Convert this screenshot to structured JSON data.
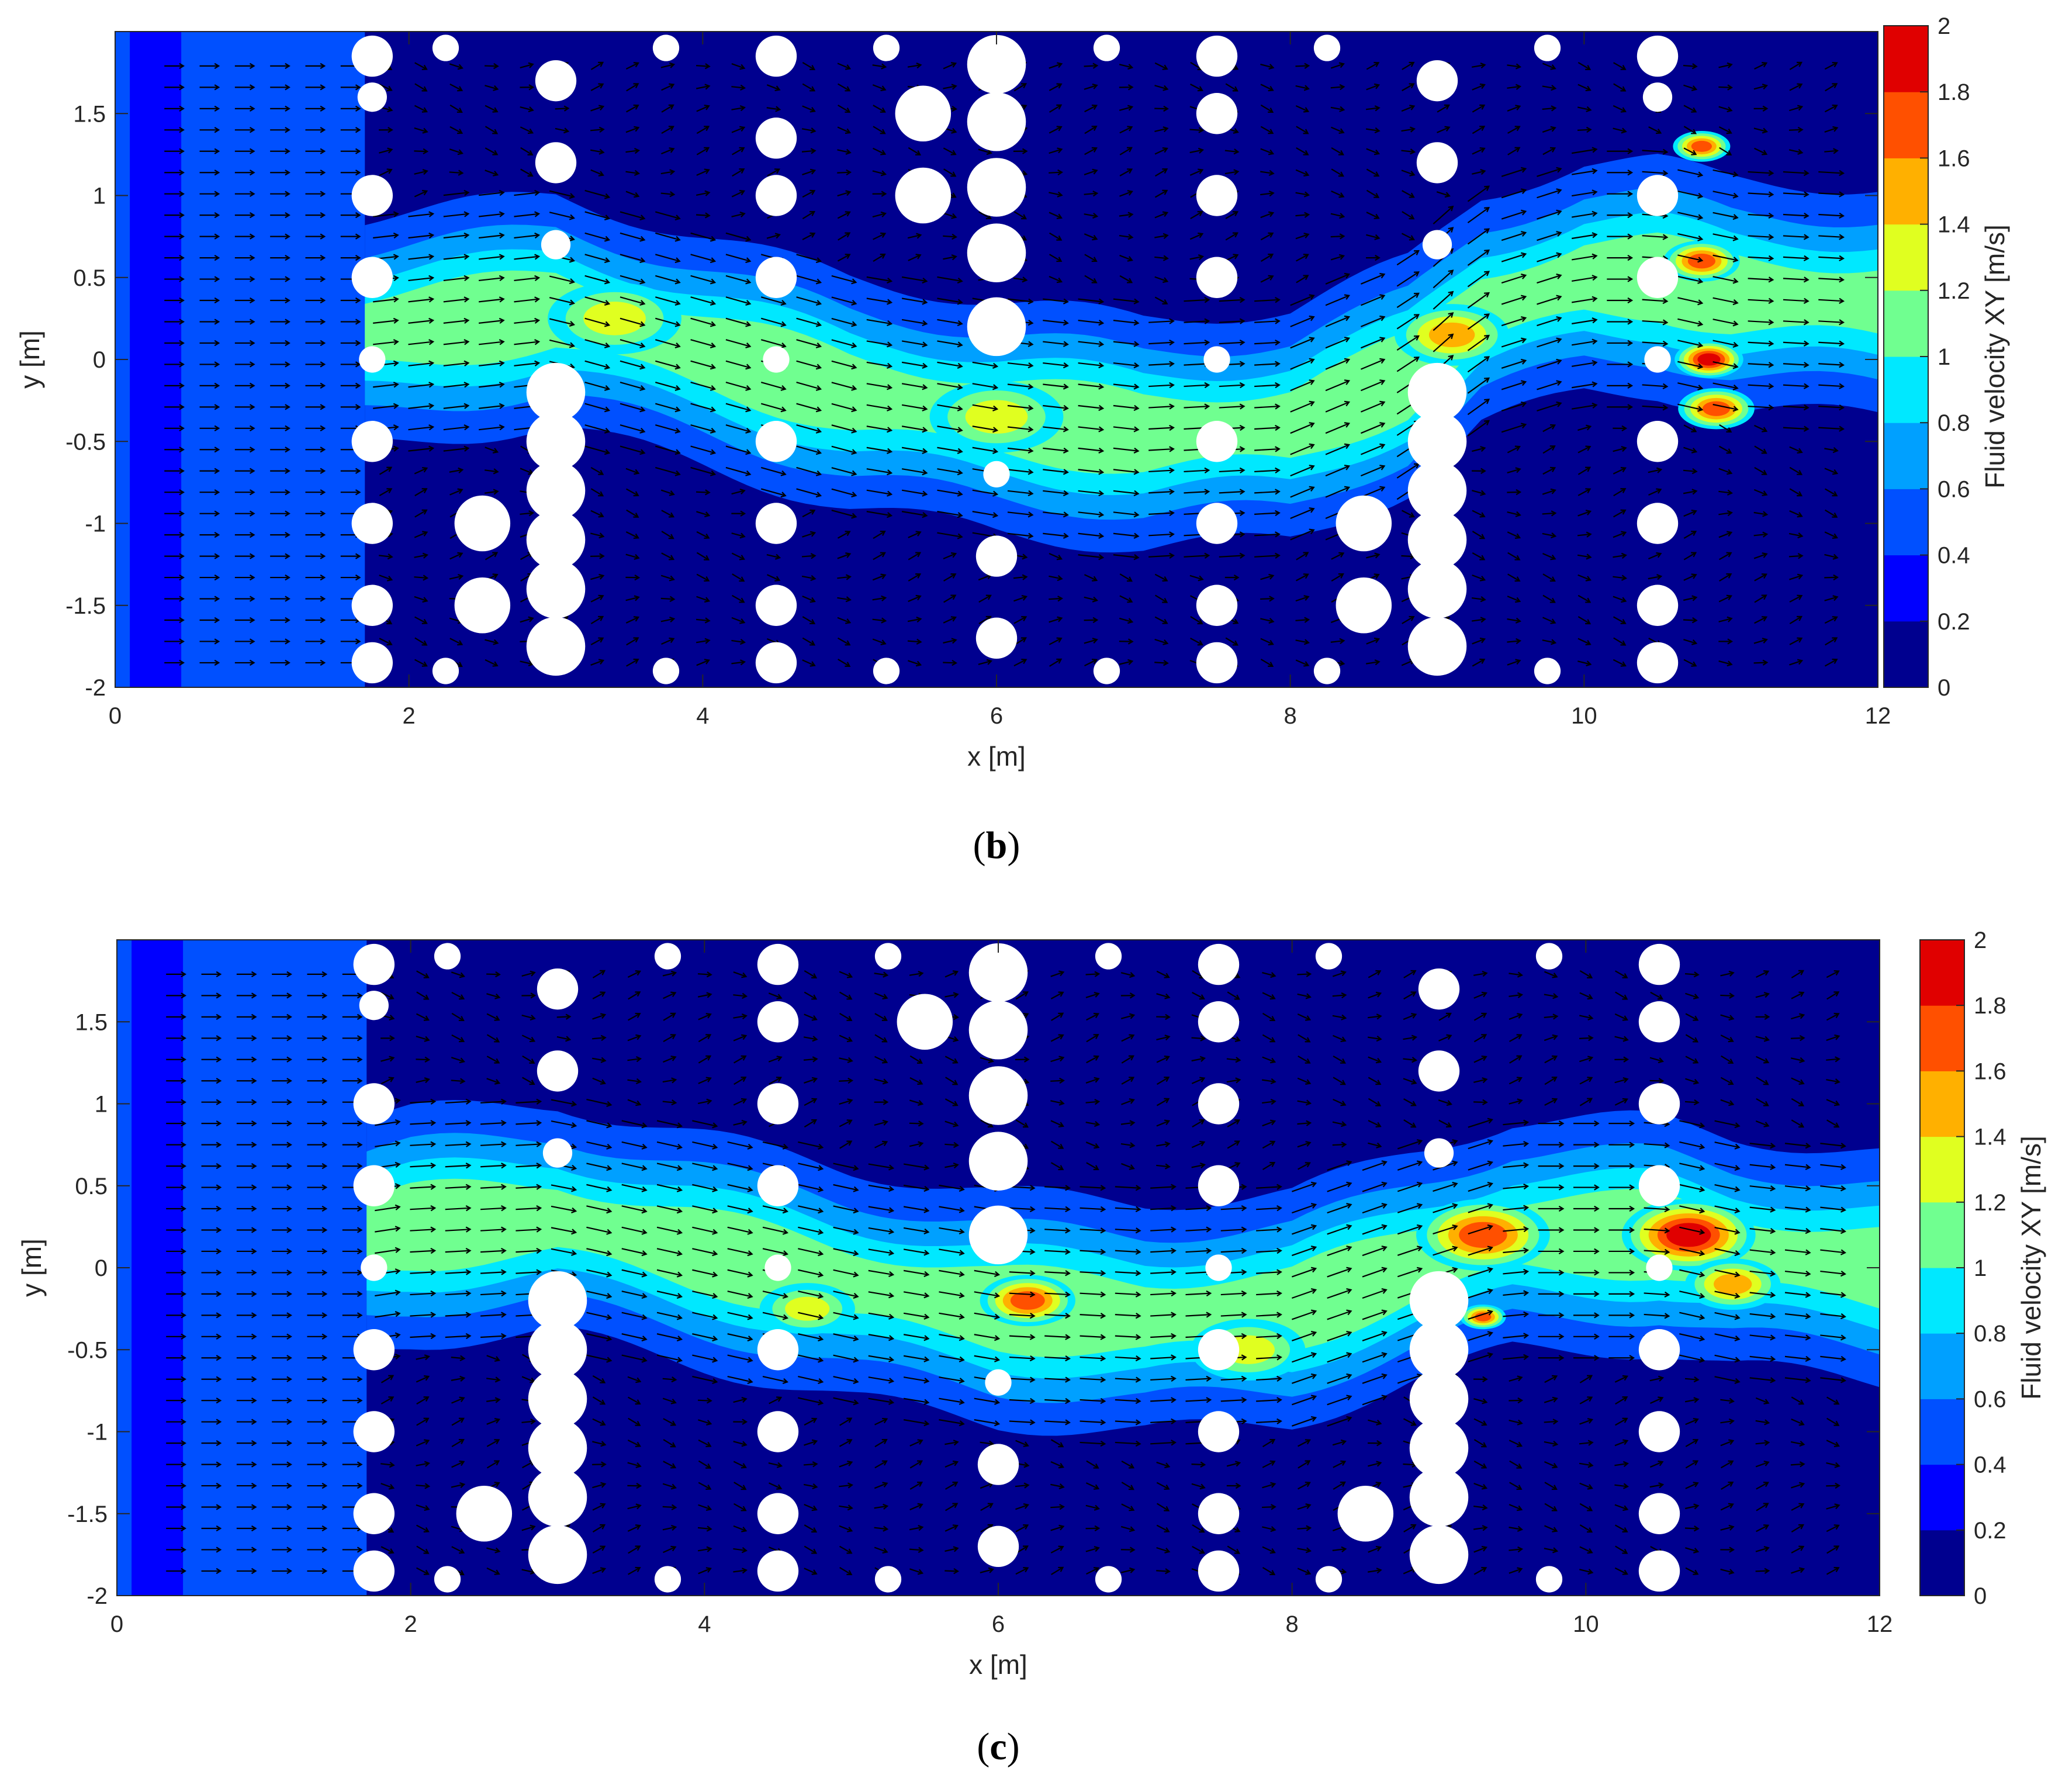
{
  "colors": {
    "plot_background": "#00008f",
    "obstacle": "#ffffff",
    "vector": "#000000",
    "scale_bands": [
      "#00008f",
      "#0000ff",
      "#0050ff",
      "#00a0ff",
      "#00e8ff",
      "#70ff90",
      "#e0ff20",
      "#ffb000",
      "#ff5000",
      "#e00000"
    ]
  },
  "chart_data": [
    {
      "type": "heatmap",
      "panel": "(b)",
      "caption_letter": "b",
      "xlabel": "x [m]",
      "ylabel": "y [m]",
      "xlim": [
        0,
        12
      ],
      "ylim": [
        -2,
        2
      ],
      "xticks": [
        "0",
        "2",
        "4",
        "6",
        "8",
        "10",
        "12"
      ],
      "yticks": [
        "-2",
        "-1.5",
        "-1",
        "-0.5",
        "0",
        "0.5",
        "1",
        "1.5"
      ],
      "colorbar_label": "Fluid velocity XY [m/s]",
      "colorbar_ticks": [
        "0",
        "0.2",
        "0.4",
        "0.6",
        "0.8",
        "1",
        "1.2",
        "1.4",
        "1.6",
        "1.8",
        "2"
      ],
      "clim": [
        0,
        2
      ],
      "inflow_band_velocity": 0.5,
      "obstacle_rows": [
        {
          "x": 1.75,
          "y": [
            1.85,
            1.6,
            1.0,
            0.5,
            0.0,
            -0.5,
            -1.0,
            -1.5,
            -1.85
          ],
          "r": [
            0.14,
            0.1,
            0.14,
            0.14,
            0.09,
            0.14,
            0.14,
            0.14,
            0.14
          ]
        },
        {
          "x": 2.25,
          "y": [
            1.9,
            -1.9
          ],
          "r": [
            0.09,
            0.09
          ]
        },
        {
          "x": 2.5,
          "y": [
            -1.0,
            -1.5
          ],
          "r": [
            0.19,
            0.19
          ]
        },
        {
          "x": 3.0,
          "y": [
            1.7,
            1.2,
            0.7,
            -0.2,
            -0.5,
            -0.8,
            -1.1,
            -1.4,
            -1.75
          ],
          "r": [
            0.14,
            0.14,
            0.1,
            0.2,
            0.2,
            0.2,
            0.2,
            0.2,
            0.2
          ]
        },
        {
          "x": 3.75,
          "y": [
            1.9,
            -1.9
          ],
          "r": [
            0.09,
            0.09
          ]
        },
        {
          "x": 4.5,
          "y": [
            1.85,
            1.35,
            1.0,
            0.5,
            0.0,
            -0.5,
            -1.0,
            -1.5,
            -1.85
          ],
          "r": [
            0.14,
            0.14,
            0.14,
            0.14,
            0.09,
            0.14,
            0.14,
            0.14,
            0.14
          ]
        },
        {
          "x": 5.25,
          "y": [
            1.9,
            -1.9
          ],
          "r": [
            0.09,
            0.09
          ]
        },
        {
          "x": 5.5,
          "y": [
            1.5,
            1.0
          ],
          "r": [
            0.19,
            0.19
          ]
        },
        {
          "x": 6.0,
          "y": [
            1.8,
            1.45,
            1.05,
            0.65,
            0.2,
            -0.7,
            -1.2,
            -1.7
          ],
          "r": [
            0.2,
            0.2,
            0.2,
            0.2,
            0.2,
            0.09,
            0.14,
            0.14
          ]
        },
        {
          "x": 6.75,
          "y": [
            1.9,
            -1.9
          ],
          "r": [
            0.09,
            0.09
          ]
        },
        {
          "x": 7.5,
          "y": [
            1.85,
            1.5,
            1.0,
            0.5,
            0.0,
            -0.5,
            -1.0,
            -1.5,
            -1.85
          ],
          "r": [
            0.14,
            0.14,
            0.14,
            0.14,
            0.09,
            0.14,
            0.14,
            0.14,
            0.14
          ]
        },
        {
          "x": 8.25,
          "y": [
            1.9,
            -1.9
          ],
          "r": [
            0.09,
            0.09
          ]
        },
        {
          "x": 8.5,
          "y": [
            -1.0,
            -1.5
          ],
          "r": [
            0.19,
            0.19
          ]
        },
        {
          "x": 9.0,
          "y": [
            1.7,
            1.2,
            0.7,
            -0.2,
            -0.5,
            -0.8,
            -1.1,
            -1.4,
            -1.75
          ],
          "r": [
            0.14,
            0.14,
            0.1,
            0.2,
            0.2,
            0.2,
            0.2,
            0.2,
            0.2
          ]
        },
        {
          "x": 9.75,
          "y": [
            1.9,
            -1.9
          ],
          "r": [
            0.09,
            0.09
          ]
        },
        {
          "x": 10.5,
          "y": [
            1.85,
            1.6,
            1.0,
            0.5,
            0.0,
            -0.5,
            -1.0,
            -1.5,
            -1.85
          ],
          "r": [
            0.14,
            0.1,
            0.14,
            0.14,
            0.09,
            0.14,
            0.14,
            0.14,
            0.14
          ]
        }
      ],
      "jet_path": [
        [
          0.5,
          0.05
        ],
        [
          2.0,
          0.2
        ],
        [
          3.0,
          0.3
        ],
        [
          4.0,
          0.05
        ],
        [
          5.0,
          -0.2
        ],
        [
          6.0,
          -0.35
        ],
        [
          7.0,
          -0.45
        ],
        [
          8.0,
          -0.4
        ],
        [
          8.8,
          -0.1
        ],
        [
          9.3,
          0.3
        ],
        [
          10.0,
          0.5
        ],
        [
          10.5,
          0.5
        ],
        [
          11.0,
          0.4
        ],
        [
          12.0,
          0.35
        ]
      ],
      "hotspots": [
        {
          "x": 9.1,
          "y": 0.15,
          "v": 1.5,
          "s": 0.3
        },
        {
          "x": 10.85,
          "y": 0.0,
          "v": 1.9,
          "s": 0.18
        },
        {
          "x": 10.8,
          "y": 1.3,
          "v": 1.6,
          "s": 0.15
        },
        {
          "x": 10.8,
          "y": 0.6,
          "v": 1.7,
          "s": 0.2
        },
        {
          "x": 10.9,
          "y": -0.3,
          "v": 1.6,
          "s": 0.2
        },
        {
          "x": 6.0,
          "y": -0.35,
          "v": 1.3,
          "s": 0.35
        },
        {
          "x": 3.4,
          "y": 0.25,
          "v": 1.2,
          "s": 0.35
        }
      ]
    },
    {
      "type": "heatmap",
      "panel": "(c)",
      "caption_letter": "c",
      "xlabel": "x [m]",
      "ylabel": "y [m]",
      "xlim": [
        0,
        12
      ],
      "ylim": [
        -2,
        2
      ],
      "xticks": [
        "0",
        "2",
        "4",
        "6",
        "8",
        "10",
        "12"
      ],
      "yticks": [
        "-2",
        "-1.5",
        "-1",
        "-0.5",
        "0",
        "0.5",
        "1",
        "1.5"
      ],
      "colorbar_label": "Fluid velocity XY [m/s]",
      "colorbar_ticks": [
        "0",
        "0.2",
        "0.4",
        "0.6",
        "0.8",
        "1",
        "1.2",
        "1.4",
        "1.6",
        "1.8",
        "2"
      ],
      "clim": [
        0,
        2
      ],
      "inflow_band_velocity": 0.5,
      "obstacle_rows": [
        {
          "x": 1.75,
          "y": [
            1.85,
            1.6,
            1.0,
            0.5,
            0.0,
            -0.5,
            -1.0,
            -1.5,
            -1.85
          ],
          "r": [
            0.14,
            0.1,
            0.14,
            0.14,
            0.09,
            0.14,
            0.14,
            0.14,
            0.14
          ]
        },
        {
          "x": 2.25,
          "y": [
            1.9,
            -1.9
          ],
          "r": [
            0.09,
            0.09
          ]
        },
        {
          "x": 2.5,
          "y": [
            -1.5
          ],
          "r": [
            0.19
          ]
        },
        {
          "x": 3.0,
          "y": [
            1.7,
            1.2,
            0.7,
            -0.2,
            -0.5,
            -0.8,
            -1.1,
            -1.4,
            -1.75
          ],
          "r": [
            0.14,
            0.14,
            0.1,
            0.2,
            0.2,
            0.2,
            0.2,
            0.2,
            0.2
          ]
        },
        {
          "x": 3.75,
          "y": [
            1.9,
            -1.9
          ],
          "r": [
            0.09,
            0.09
          ]
        },
        {
          "x": 4.5,
          "y": [
            1.85,
            1.5,
            1.0,
            0.5,
            0.0,
            -0.5,
            -1.0,
            -1.5,
            -1.85
          ],
          "r": [
            0.14,
            0.14,
            0.14,
            0.14,
            0.09,
            0.14,
            0.14,
            0.14,
            0.14
          ]
        },
        {
          "x": 5.25,
          "y": [
            1.9,
            -1.9
          ],
          "r": [
            0.09,
            0.09
          ]
        },
        {
          "x": 5.5,
          "y": [
            1.5
          ],
          "r": [
            0.19
          ]
        },
        {
          "x": 6.0,
          "y": [
            1.8,
            1.45,
            1.05,
            0.65,
            0.2,
            -0.7,
            -1.2,
            -1.7
          ],
          "r": [
            0.2,
            0.2,
            0.2,
            0.2,
            0.2,
            0.09,
            0.14,
            0.14
          ]
        },
        {
          "x": 6.75,
          "y": [
            1.9,
            -1.9
          ],
          "r": [
            0.09,
            0.09
          ]
        },
        {
          "x": 7.5,
          "y": [
            1.85,
            1.5,
            1.0,
            0.5,
            0.0,
            -0.5,
            -1.0,
            -1.5,
            -1.85
          ],
          "r": [
            0.14,
            0.14,
            0.14,
            0.14,
            0.09,
            0.14,
            0.14,
            0.14,
            0.14
          ]
        },
        {
          "x": 8.25,
          "y": [
            1.9,
            -1.9
          ],
          "r": [
            0.09,
            0.09
          ]
        },
        {
          "x": 8.5,
          "y": [
            -1.5
          ],
          "r": [
            0.19
          ]
        },
        {
          "x": 9.0,
          "y": [
            1.7,
            1.2,
            0.7,
            -0.2,
            -0.5,
            -0.8,
            -1.1,
            -1.4,
            -1.75
          ],
          "r": [
            0.14,
            0.14,
            0.1,
            0.2,
            0.2,
            0.2,
            0.2,
            0.2,
            0.2
          ]
        },
        {
          "x": 9.75,
          "y": [
            1.9,
            -1.9
          ],
          "r": [
            0.09,
            0.09
          ]
        },
        {
          "x": 10.5,
          "y": [
            1.85,
            1.5,
            1.0,
            0.5,
            0.0,
            -0.5,
            -1.0,
            -1.5,
            -1.85
          ],
          "r": [
            0.14,
            0.14,
            0.14,
            0.14,
            0.09,
            0.14,
            0.14,
            0.14,
            0.14
          ]
        }
      ],
      "jet_path": [
        [
          0.5,
          0.05
        ],
        [
          2.0,
          0.25
        ],
        [
          3.0,
          0.3
        ],
        [
          4.0,
          0.1
        ],
        [
          5.0,
          -0.1
        ],
        [
          6.0,
          -0.25
        ],
        [
          7.0,
          -0.3
        ],
        [
          8.0,
          -0.25
        ],
        [
          8.8,
          0.0
        ],
        [
          9.5,
          0.2
        ],
        [
          10.5,
          0.2
        ],
        [
          11.0,
          0.1
        ],
        [
          12.0,
          0.0
        ]
      ],
      "hotspots": [
        {
          "x": 9.3,
          "y": 0.2,
          "v": 1.7,
          "s": 0.35
        },
        {
          "x": 10.7,
          "y": 0.2,
          "v": 1.8,
          "s": 0.35
        },
        {
          "x": 11.0,
          "y": -0.1,
          "v": 1.5,
          "s": 0.25
        },
        {
          "x": 6.2,
          "y": -0.2,
          "v": 1.6,
          "s": 0.25
        },
        {
          "x": 9.3,
          "y": -0.3,
          "v": 1.6,
          "s": 0.12
        },
        {
          "x": 4.7,
          "y": -0.25,
          "v": 1.3,
          "s": 0.25
        },
        {
          "x": 7.7,
          "y": -0.5,
          "v": 1.2,
          "s": 0.3
        }
      ]
    }
  ]
}
